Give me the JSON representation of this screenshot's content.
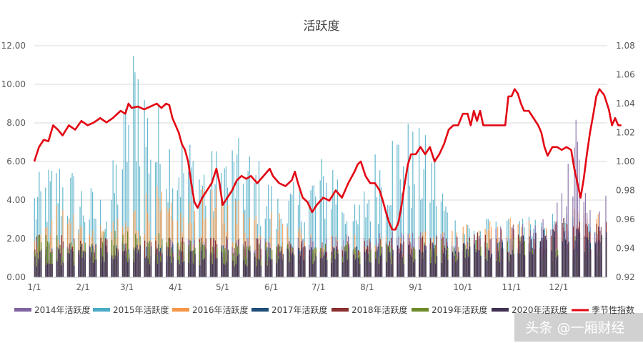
{
  "chart_data": {
    "type": "bar",
    "title": "活跃度",
    "y_left": {
      "ticks": [
        "0.00",
        "2.00",
        "4.00",
        "6.00",
        "8.00",
        "10.00",
        "12.00"
      ],
      "range": [
        0,
        12
      ]
    },
    "y_right": {
      "ticks": [
        "0.92",
        "0.94",
        "0.96",
        "0.98",
        "1.00",
        "1.02",
        "1.04",
        "1.06",
        "1.08"
      ],
      "range": [
        0.92,
        1.08
      ]
    },
    "x_ticks": [
      "1/1",
      "2/1",
      "3/1",
      "4/1",
      "5/1",
      "6/1",
      "7/1",
      "8/1",
      "9/1",
      "10/1",
      "11/1",
      "12/1"
    ],
    "series": [
      {
        "name": "2014年活跃度",
        "color": "#8064a2",
        "kind": "bar",
        "profile": [
          [
            0,
            1.2
          ],
          [
            60,
            1.3
          ],
          [
            120,
            1.4
          ],
          [
            180,
            1.5
          ],
          [
            240,
            1.7
          ],
          [
            300,
            1.9
          ],
          [
            330,
            2.3
          ],
          [
            340,
            4.5
          ],
          [
            345,
            6.8
          ],
          [
            350,
            3.2
          ],
          [
            357,
            3.5
          ]
        ]
      },
      {
        "name": "2015年活跃度",
        "color": "#4bacc6",
        "kind": "bar",
        "profile": [
          [
            0,
            3.6
          ],
          [
            15,
            4.5
          ],
          [
            25,
            4.0
          ],
          [
            35,
            3.4
          ],
          [
            45,
            3.0
          ],
          [
            55,
            5.5
          ],
          [
            62,
            8.5
          ],
          [
            66,
            9.5
          ],
          [
            72,
            7.0
          ],
          [
            85,
            5.8
          ],
          [
            95,
            5.5
          ],
          [
            110,
            4.5
          ],
          [
            125,
            5.2
          ],
          [
            140,
            4.6
          ],
          [
            155,
            3.2
          ],
          [
            170,
            3.5
          ],
          [
            180,
            4.3
          ],
          [
            190,
            4.8
          ],
          [
            205,
            2.5
          ],
          [
            215,
            4.5
          ],
          [
            225,
            5.6
          ],
          [
            235,
            5.9
          ],
          [
            245,
            5.4
          ],
          [
            255,
            4.8
          ],
          [
            265,
            2.4
          ],
          [
            285,
            2.2
          ],
          [
            300,
            2.1
          ],
          [
            320,
            2.2
          ],
          [
            330,
            2.4
          ],
          [
            345,
            2.3
          ],
          [
            357,
            2.0
          ]
        ]
      },
      {
        "name": "2016年活跃度",
        "color": "#f79646",
        "kind": "bar",
        "profile": [
          [
            0,
            2.5
          ],
          [
            20,
            2.8
          ],
          [
            40,
            1.8
          ],
          [
            55,
            2.2
          ],
          [
            65,
            3.0
          ],
          [
            75,
            3.5
          ],
          [
            90,
            2.5
          ],
          [
            110,
            3.3
          ],
          [
            130,
            3.0
          ],
          [
            150,
            2.6
          ],
          [
            175,
            1.8
          ],
          [
            195,
            1.5
          ],
          [
            215,
            1.6
          ],
          [
            240,
            1.6
          ],
          [
            270,
            1.9
          ],
          [
            300,
            2.2
          ],
          [
            330,
            2.0
          ],
          [
            345,
            2.5
          ],
          [
            357,
            2.4
          ]
        ]
      },
      {
        "name": "2017年活跃度",
        "color": "#1f4e79",
        "kind": "bar",
        "profile": [
          [
            0,
            1.3
          ],
          [
            60,
            1.2
          ],
          [
            120,
            1.2
          ],
          [
            180,
            1.1
          ],
          [
            240,
            1.2
          ],
          [
            300,
            1.3
          ],
          [
            330,
            1.5
          ],
          [
            357,
            1.6
          ]
        ]
      },
      {
        "name": "2018年活跃度",
        "color": "#8b2f2f",
        "kind": "bar",
        "profile": [
          [
            0,
            1.6
          ],
          [
            60,
            1.4
          ],
          [
            120,
            1.5
          ],
          [
            180,
            1.3
          ],
          [
            240,
            1.5
          ],
          [
            300,
            1.8
          ],
          [
            330,
            2.2
          ],
          [
            357,
            2.0
          ]
        ]
      },
      {
        "name": "2019年活跃度",
        "color": "#6e8b2a",
        "kind": "bar",
        "profile": [
          [
            0,
            1.5
          ],
          [
            60,
            1.7
          ],
          [
            120,
            1.3
          ],
          [
            180,
            1.2
          ],
          [
            240,
            1.3
          ],
          [
            300,
            1.4
          ],
          [
            330,
            1.6
          ],
          [
            357,
            1.6
          ]
        ]
      },
      {
        "name": "2020年活跃度",
        "color": "#403152",
        "kind": "bar",
        "profile": [
          [
            0,
            1.0
          ],
          [
            60,
            1.2
          ],
          [
            120,
            1.0
          ],
          [
            180,
            1.1
          ],
          [
            240,
            1.2
          ],
          [
            300,
            1.4
          ],
          [
            330,
            1.8
          ],
          [
            357,
            1.8
          ]
        ]
      },
      {
        "name": "季节性指数",
        "color": "#e30613",
        "kind": "line",
        "axis": "right",
        "points": [
          [
            0,
            1.0
          ],
          [
            3,
            1.01
          ],
          [
            6,
            1.015
          ],
          [
            9,
            1.014
          ],
          [
            12,
            1.025
          ],
          [
            15,
            1.022
          ],
          [
            18,
            1.018
          ],
          [
            22,
            1.025
          ],
          [
            26,
            1.022
          ],
          [
            30,
            1.028
          ],
          [
            34,
            1.025
          ],
          [
            38,
            1.027
          ],
          [
            42,
            1.03
          ],
          [
            46,
            1.027
          ],
          [
            50,
            1.03
          ],
          [
            55,
            1.035
          ],
          [
            58,
            1.033
          ],
          [
            60,
            1.04
          ],
          [
            62,
            1.037
          ],
          [
            66,
            1.038
          ],
          [
            70,
            1.036
          ],
          [
            74,
            1.038
          ],
          [
            78,
            1.04
          ],
          [
            81,
            1.037
          ],
          [
            84,
            1.04
          ],
          [
            86,
            1.039
          ],
          [
            88,
            1.03
          ],
          [
            90,
            1.025
          ],
          [
            92,
            1.02
          ],
          [
            94,
            1.012
          ],
          [
            96,
            1.008
          ],
          [
            98,
            1.0
          ],
          [
            100,
            0.985
          ],
          [
            102,
            0.972
          ],
          [
            104,
            0.968
          ],
          [
            107,
            0.975
          ],
          [
            110,
            0.98
          ],
          [
            113,
            0.985
          ],
          [
            116,
            0.995
          ],
          [
            118,
            0.985
          ],
          [
            120,
            0.97
          ],
          [
            123,
            0.975
          ],
          [
            126,
            0.98
          ],
          [
            129,
            0.987
          ],
          [
            132,
            0.99
          ],
          [
            135,
            0.988
          ],
          [
            138,
            0.99
          ],
          [
            142,
            0.985
          ],
          [
            146,
            0.99
          ],
          [
            150,
            0.995
          ],
          [
            152,
            0.99
          ],
          [
            156,
            0.985
          ],
          [
            160,
            0.983
          ],
          [
            164,
            0.987
          ],
          [
            166,
            0.993
          ],
          [
            168,
            0.985
          ],
          [
            171,
            0.975
          ],
          [
            174,
            0.972
          ],
          [
            177,
            0.965
          ],
          [
            180,
            0.97
          ],
          [
            184,
            0.975
          ],
          [
            188,
            0.973
          ],
          [
            192,
            0.98
          ],
          [
            196,
            0.975
          ],
          [
            200,
            0.985
          ],
          [
            204,
            0.993
          ],
          [
            206,
            0.998
          ],
          [
            208,
            1.0
          ],
          [
            211,
            0.99
          ],
          [
            214,
            0.985
          ],
          [
            217,
            0.985
          ],
          [
            220,
            0.98
          ],
          [
            222,
            0.973
          ],
          [
            224,
            0.965
          ],
          [
            226,
            0.958
          ],
          [
            228,
            0.953
          ],
          [
            230,
            0.953
          ],
          [
            232,
            0.958
          ],
          [
            234,
            0.97
          ],
          [
            236,
            0.985
          ],
          [
            238,
            0.998
          ],
          [
            240,
            1.005
          ],
          [
            243,
            1.005
          ],
          [
            246,
            1.01
          ],
          [
            249,
            1.005
          ],
          [
            252,
            1.01
          ],
          [
            255,
            1.0
          ],
          [
            258,
            1.005
          ],
          [
            261,
            1.012
          ],
          [
            264,
            1.022
          ],
          [
            267,
            1.025
          ],
          [
            270,
            1.025
          ],
          [
            273,
            1.033
          ],
          [
            276,
            1.033
          ],
          [
            278,
            1.025
          ],
          [
            280,
            1.035
          ],
          [
            282,
            1.028
          ],
          [
            284,
            1.035
          ],
          [
            286,
            1.025
          ],
          [
            288,
            1.025
          ],
          [
            290,
            1.025
          ],
          [
            295,
            1.025
          ],
          [
            300,
            1.025
          ],
          [
            302,
            1.045
          ],
          [
            304,
            1.045
          ],
          [
            306,
            1.05
          ],
          [
            308,
            1.047
          ],
          [
            310,
            1.04
          ],
          [
            312,
            1.035
          ],
          [
            315,
            1.035
          ],
          [
            318,
            1.03
          ],
          [
            321,
            1.025
          ],
          [
            323,
            1.02
          ],
          [
            325,
            1.01
          ],
          [
            327,
            1.004
          ],
          [
            330,
            1.01
          ],
          [
            333,
            1.01
          ],
          [
            336,
            1.008
          ],
          [
            339,
            1.01
          ],
          [
            342,
            1.008
          ],
          [
            344,
            0.995
          ],
          [
            346,
            0.985
          ],
          [
            348,
            0.975
          ],
          [
            350,
            0.988
          ],
          [
            352,
            1.005
          ],
          [
            354,
            1.02
          ],
          [
            356,
            1.032
          ],
          [
            358,
            1.045
          ],
          [
            360,
            1.05
          ],
          [
            363,
            1.046
          ],
          [
            366,
            1.036
          ],
          [
            368,
            1.025
          ],
          [
            370,
            1.03
          ],
          [
            372,
            1.025
          ],
          [
            374,
            1.025
          ]
        ]
      }
    ],
    "legend_position": "bottom"
  },
  "watermark": "头条 @一厢财经"
}
